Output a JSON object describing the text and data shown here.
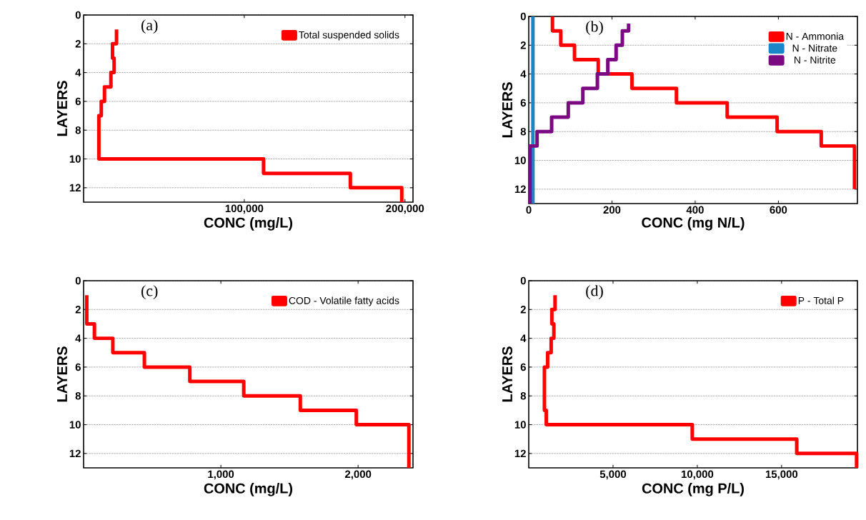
{
  "chart_data": [
    {
      "type": "line",
      "title": "(a)",
      "xlabel": "CONC (mg/L)",
      "ylabel": "LAYERS",
      "xlim": [
        0,
        205000
      ],
      "xticks": [
        {
          "value": 100000,
          "label": "100,000"
        },
        {
          "value": 200000,
          "label": "200,000"
        }
      ],
      "ylim": [
        13,
        0
      ],
      "yticks": [
        0,
        2,
        4,
        6,
        8,
        10,
        12
      ],
      "grid": "y",
      "legend": "top right",
      "line_style": "solid",
      "series": [
        {
          "name": "Total suspended solids",
          "color": "#ff0000",
          "x": [
            20500,
            20500,
            18000,
            18000,
            19000,
            19000,
            17000,
            17000,
            13000,
            13000,
            11000,
            11000,
            9500,
            9500,
            112000,
            112000,
            166000,
            166000,
            198000,
            198000
          ],
          "values": [
            1,
            2,
            2,
            3,
            3,
            4,
            4,
            5,
            5,
            6,
            6,
            7,
            7,
            10,
            10,
            11,
            11,
            12,
            12,
            13
          ]
        }
      ]
    },
    {
      "type": "line",
      "title": "(b)",
      "xlabel": "CONC (mg N/L)",
      "ylabel": "LAYERS",
      "xlim": [
        0,
        790
      ],
      "xticks": [
        0,
        200,
        400,
        600
      ],
      "ylim": [
        13,
        0
      ],
      "yticks": [
        0,
        2,
        4,
        6,
        8,
        10,
        12
      ],
      "grid": "y",
      "legend": "top right",
      "line_style": "solid",
      "series": [
        {
          "name": "N - Ammonia",
          "color": "#ff0000",
          "x": [
            57,
            57,
            77,
            77,
            110,
            110,
            167,
            167,
            248,
            248,
            355,
            355,
            477,
            477,
            597,
            597,
            703,
            703,
            783,
            783
          ],
          "values": [
            0,
            1,
            1,
            2,
            2,
            3,
            3,
            4,
            4,
            5,
            5,
            6,
            6,
            7,
            7,
            8,
            8,
            9,
            9,
            12
          ]
        },
        {
          "name": "N - Nitrate",
          "color": "#1a86c8",
          "x": [
            10,
            10
          ],
          "values": [
            0,
            13
          ]
        },
        {
          "name": "N - Nitrite",
          "color": "#7b0a82",
          "x": [
            240,
            240,
            225,
            225,
            210,
            210,
            190,
            190,
            165,
            165,
            130,
            130,
            95,
            95,
            55,
            55,
            20,
            20,
            3,
            3
          ],
          "values": [
            0.5,
            1,
            1,
            2,
            2,
            3,
            3,
            4,
            4,
            5,
            5,
            6,
            6,
            7,
            7,
            8,
            8,
            9,
            9,
            13
          ]
        }
      ]
    },
    {
      "type": "line",
      "title": "(c)",
      "xlabel": "CONC (mg/L)",
      "ylabel": "LAYERS",
      "xlim": [
        0,
        2400
      ],
      "xticks": [
        {
          "value": 1000,
          "label": "1,000"
        },
        {
          "value": 2000,
          "label": "2,000"
        }
      ],
      "ylim": [
        13,
        0
      ],
      "yticks": [
        0,
        2,
        4,
        6,
        8,
        10,
        12
      ],
      "grid": "y",
      "legend": "top right",
      "line_style": "solid",
      "series": [
        {
          "name": "COD - Volatile fatty acids",
          "color": "#ff0000",
          "x": [
            23,
            23,
            79,
            79,
            213,
            213,
            443,
            443,
            774,
            774,
            1167,
            1167,
            1579,
            1579,
            1987,
            1987,
            2370,
            2370
          ],
          "values": [
            1,
            3,
            3,
            4,
            4,
            5,
            5,
            6,
            6,
            7,
            7,
            8,
            8,
            9,
            9,
            10,
            10,
            13
          ]
        }
      ]
    },
    {
      "type": "line",
      "title": "(d)",
      "xlabel": "CONC (mg P/L)",
      "ylabel": "LAYERS",
      "xlim": [
        0,
        19500
      ],
      "xticks": [
        {
          "value": 5000,
          "label": "5,000"
        },
        {
          "value": 10000,
          "label": "10,000"
        },
        {
          "value": 15000,
          "label": "15,000"
        }
      ],
      "ylim": [
        13,
        0
      ],
      "yticks": [
        0,
        2,
        4,
        6,
        8,
        10,
        12
      ],
      "grid": "y",
      "legend": "top right",
      "line_style": "solid",
      "series": [
        {
          "name": "P - Total P",
          "color": "#ff0000",
          "x": [
            1560,
            1560,
            1370,
            1370,
            1490,
            1490,
            1330,
            1330,
            1120,
            1120,
            930,
            930,
            1040,
            1040,
            9700,
            9700,
            15900,
            15900,
            19450,
            19450
          ],
          "values": [
            1,
            2,
            2,
            3,
            3,
            4,
            4,
            5,
            5,
            6,
            6,
            9,
            9,
            10,
            10,
            11,
            11,
            12,
            12,
            13
          ]
        }
      ]
    }
  ]
}
